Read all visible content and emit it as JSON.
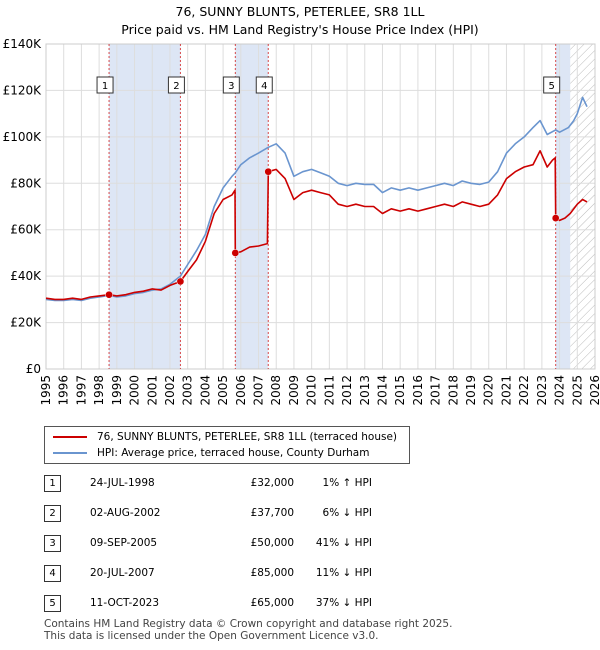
{
  "title_line1": "76, SUNNY BLUNTS, PETERLEE, SR8 1LL",
  "title_line2": "Price paid vs. HM Land Registry's House Price Index (HPI)",
  "colors": {
    "property": "#cc0000",
    "hpi": "#6a95cf",
    "shade": "#dde6f5",
    "grid": "#dddddd",
    "marker_line": "#cc0000"
  },
  "chart_data": {
    "type": "line",
    "xlim": [
      1995,
      2026
    ],
    "ylim": [
      0,
      140000
    ],
    "y_ticks": [
      {
        "value": 0,
        "label": "£0"
      },
      {
        "value": 20000,
        "label": "£20K"
      },
      {
        "value": 40000,
        "label": "£40K"
      },
      {
        "value": 60000,
        "label": "£60K"
      },
      {
        "value": 80000,
        "label": "£80K"
      },
      {
        "value": 100000,
        "label": "£100K"
      },
      {
        "value": 120000,
        "label": "£120K"
      },
      {
        "value": 140000,
        "label": "£140K"
      }
    ],
    "x_ticks": [
      "1995",
      "1996",
      "1997",
      "1998",
      "1999",
      "2000",
      "2001",
      "2002",
      "2003",
      "2004",
      "2005",
      "2006",
      "2007",
      "2008",
      "2009",
      "2010",
      "2011",
      "2012",
      "2013",
      "2014",
      "2015",
      "2016",
      "2017",
      "2018",
      "2019",
      "2020",
      "2021",
      "2022",
      "2023",
      "2024",
      "2025",
      "2026"
    ],
    "shaded_ranges": [
      [
        1998.56,
        2002.59
      ],
      [
        2005.69,
        2007.55
      ],
      [
        2023.78,
        2024.6
      ]
    ],
    "hatched_range": [
      2024.6,
      2026
    ],
    "series": [
      {
        "name": "76, SUNNY BLUNTS, PETERLEE, SR8 1LL (terraced house)",
        "points": [
          [
            1995.0,
            30500
          ],
          [
            1995.5,
            30000
          ],
          [
            1996.0,
            30000
          ],
          [
            1996.5,
            30500
          ],
          [
            1997.0,
            30000
          ],
          [
            1997.5,
            31000
          ],
          [
            1998.0,
            31500
          ],
          [
            1998.56,
            32000
          ],
          [
            1999.0,
            31500
          ],
          [
            1999.5,
            32000
          ],
          [
            2000.0,
            33000
          ],
          [
            2000.5,
            33500
          ],
          [
            2001.0,
            34500
          ],
          [
            2001.5,
            34000
          ],
          [
            2002.0,
            36000
          ],
          [
            2002.59,
            37700
          ],
          [
            2003.0,
            42000
          ],
          [
            2003.5,
            47000
          ],
          [
            2004.0,
            55000
          ],
          [
            2004.5,
            67000
          ],
          [
            2005.0,
            73000
          ],
          [
            2005.5,
            75000
          ],
          [
            2005.67,
            77000
          ],
          [
            2005.69,
            50000
          ],
          [
            2006.0,
            50500
          ],
          [
            2006.5,
            52500
          ],
          [
            2007.0,
            53000
          ],
          [
            2007.5,
            54000
          ],
          [
            2007.55,
            85000
          ],
          [
            2008.0,
            86000
          ],
          [
            2008.5,
            82000
          ],
          [
            2009.0,
            73000
          ],
          [
            2009.5,
            76000
          ],
          [
            2010.0,
            77000
          ],
          [
            2010.5,
            76000
          ],
          [
            2011.0,
            75000
          ],
          [
            2011.5,
            71000
          ],
          [
            2012.0,
            70000
          ],
          [
            2012.5,
            71000
          ],
          [
            2013.0,
            70000
          ],
          [
            2013.5,
            70000
          ],
          [
            2014.0,
            67000
          ],
          [
            2014.5,
            69000
          ],
          [
            2015.0,
            68000
          ],
          [
            2015.5,
            69000
          ],
          [
            2016.0,
            68000
          ],
          [
            2016.5,
            69000
          ],
          [
            2017.0,
            70000
          ],
          [
            2017.5,
            71000
          ],
          [
            2018.0,
            70000
          ],
          [
            2018.5,
            72000
          ],
          [
            2019.0,
            71000
          ],
          [
            2019.5,
            70000
          ],
          [
            2020.0,
            71000
          ],
          [
            2020.5,
            75000
          ],
          [
            2021.0,
            82000
          ],
          [
            2021.5,
            85000
          ],
          [
            2022.0,
            87000
          ],
          [
            2022.5,
            88000
          ],
          [
            2022.9,
            94000
          ],
          [
            2023.3,
            87000
          ],
          [
            2023.6,
            90000
          ],
          [
            2023.75,
            91000
          ],
          [
            2023.78,
            65000
          ],
          [
            2024.0,
            64000
          ],
          [
            2024.3,
            65000
          ],
          [
            2024.6,
            67000
          ],
          [
            2025.0,
            71000
          ],
          [
            2025.3,
            73000
          ],
          [
            2025.55,
            72000
          ]
        ]
      },
      {
        "name": "HPI: Average price, terraced house, County Durham",
        "points": [
          [
            1995.0,
            30000
          ],
          [
            1995.5,
            29500
          ],
          [
            1996.0,
            29500
          ],
          [
            1996.5,
            30000
          ],
          [
            1997.0,
            29500
          ],
          [
            1997.5,
            30500
          ],
          [
            1998.0,
            31000
          ],
          [
            1998.56,
            31700
          ],
          [
            1999.0,
            31000
          ],
          [
            1999.5,
            31500
          ],
          [
            2000.0,
            32500
          ],
          [
            2000.5,
            33000
          ],
          [
            2001.0,
            34000
          ],
          [
            2001.5,
            34500
          ],
          [
            2002.0,
            36500
          ],
          [
            2002.59,
            40000
          ],
          [
            2003.0,
            45000
          ],
          [
            2003.5,
            51000
          ],
          [
            2004.0,
            58000
          ],
          [
            2004.5,
            70000
          ],
          [
            2005.0,
            78000
          ],
          [
            2005.5,
            83000
          ],
          [
            2005.69,
            84500
          ],
          [
            2006.0,
            88000
          ],
          [
            2006.5,
            91000
          ],
          [
            2007.0,
            93000
          ],
          [
            2007.55,
            95500
          ],
          [
            2008.0,
            97000
          ],
          [
            2008.5,
            93000
          ],
          [
            2009.0,
            83000
          ],
          [
            2009.5,
            85000
          ],
          [
            2010.0,
            86000
          ],
          [
            2010.5,
            84500
          ],
          [
            2011.0,
            83000
          ],
          [
            2011.5,
            80000
          ],
          [
            2012.0,
            79000
          ],
          [
            2012.5,
            80000
          ],
          [
            2013.0,
            79500
          ],
          [
            2013.5,
            79500
          ],
          [
            2014.0,
            76000
          ],
          [
            2014.5,
            78000
          ],
          [
            2015.0,
            77000
          ],
          [
            2015.5,
            78000
          ],
          [
            2016.0,
            77000
          ],
          [
            2016.5,
            78000
          ],
          [
            2017.0,
            79000
          ],
          [
            2017.5,
            80000
          ],
          [
            2018.0,
            79000
          ],
          [
            2018.5,
            81000
          ],
          [
            2019.0,
            80000
          ],
          [
            2019.5,
            79500
          ],
          [
            2020.0,
            80500
          ],
          [
            2020.5,
            85000
          ],
          [
            2021.0,
            93000
          ],
          [
            2021.5,
            97000
          ],
          [
            2022.0,
            100000
          ],
          [
            2022.5,
            104000
          ],
          [
            2022.9,
            107000
          ],
          [
            2023.3,
            101000
          ],
          [
            2023.78,
            103000
          ],
          [
            2024.0,
            102000
          ],
          [
            2024.5,
            104000
          ],
          [
            2024.8,
            107000
          ],
          [
            2025.0,
            110000
          ],
          [
            2025.3,
            117000
          ],
          [
            2025.55,
            113000
          ]
        ]
      }
    ],
    "sales": [
      {
        "n": "1",
        "x": 1998.56,
        "price": 32000
      },
      {
        "n": "2",
        "x": 2002.59,
        "price": 37700
      },
      {
        "n": "3",
        "x": 2005.69,
        "price": 50000
      },
      {
        "n": "4",
        "x": 2007.55,
        "price": 85000
      },
      {
        "n": "5",
        "x": 2023.78,
        "price": 65000
      }
    ]
  },
  "legend": {
    "property_label": "76, SUNNY BLUNTS, PETERLEE, SR8 1LL (terraced house)",
    "hpi_label": "HPI: Average price, terraced house, County Durham"
  },
  "transactions": [
    {
      "n": "1",
      "date": "24-JUL-1998",
      "price": "£32,000",
      "hpi": "1% ↑ HPI"
    },
    {
      "n": "2",
      "date": "02-AUG-2002",
      "price": "£37,700",
      "hpi": "6% ↓ HPI"
    },
    {
      "n": "3",
      "date": "09-SEP-2005",
      "price": "£50,000",
      "hpi": "41% ↓ HPI"
    },
    {
      "n": "4",
      "date": "20-JUL-2007",
      "price": "£85,000",
      "hpi": "11% ↓ HPI"
    },
    {
      "n": "5",
      "date": "11-OCT-2023",
      "price": "£65,000",
      "hpi": "37% ↓ HPI"
    }
  ],
  "footer_line1": "Contains HM Land Registry data © Crown copyright and database right 2025.",
  "footer_line2": "This data is licensed under the Open Government Licence v3.0."
}
